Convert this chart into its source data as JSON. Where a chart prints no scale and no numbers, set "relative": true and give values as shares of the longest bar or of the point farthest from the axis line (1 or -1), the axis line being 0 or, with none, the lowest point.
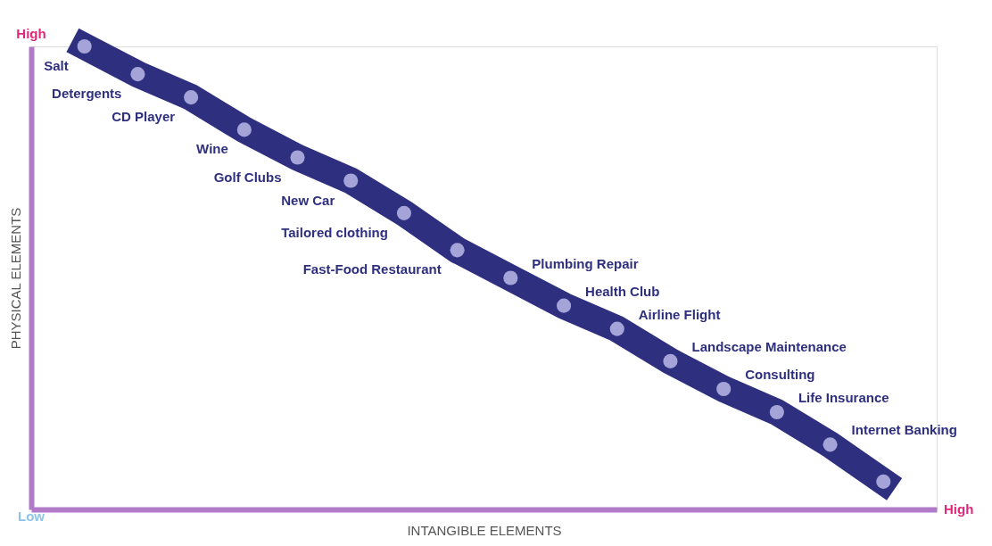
{
  "chart_data": {
    "type": "line",
    "relative": true,
    "xlabel": "INTANGIBLE ELEMENTS",
    "ylabel": "PHYSICAL ELEMENTS",
    "categories": [
      null,
      null,
      null,
      null,
      null,
      null,
      null,
      null,
      null,
      null,
      null,
      null,
      null,
      null,
      null,
      null
    ],
    "series": [
      {
        "color": "#2e2f7f",
        "values": [
          1,
          0.94,
          0.89,
          0.82,
          0.76,
          0.71,
          0.64,
          0.56,
          0.5,
          0.44,
          0.39,
          0.32,
          0.26,
          0.21,
          0.14,
          0.06
        ]
      }
    ],
    "marker": "circle",
    "grid": false,
    "annotations": [
      "High",
      "Low",
      "High",
      "Salt",
      "Detergents",
      "CD Player",
      "Wine",
      "Golf Clubs",
      "New Car",
      "Tailored clothing",
      "Fast-Food Restaurant",
      "Plumbing Repair",
      "Health Club",
      "Airline Flight",
      "Landscape Maintenance",
      "Consulting",
      "Life Insurance",
      "Internet Banking"
    ]
  }
}
